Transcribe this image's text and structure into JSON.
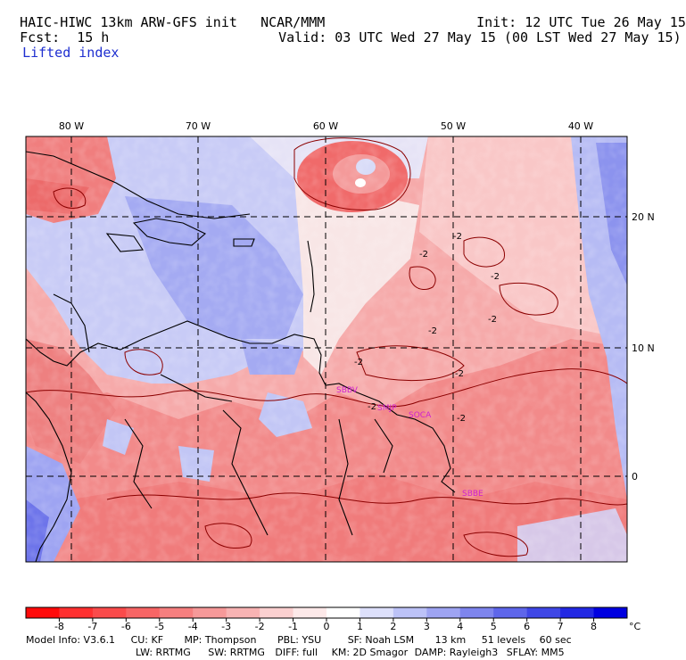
{
  "header": {
    "model_title": "HAIC-HIWC 13km ARW-GFS init",
    "org": "NCAR/MMM",
    "init": "Init: 12 UTC Tue 26 May 15",
    "fcst_label": "Fcst:",
    "fcst_value": "15 h",
    "valid": "Valid: 03 UTC Wed 27 May 15 (00 LST Wed 27 May 15)",
    "field_name": "Lifted index"
  },
  "map": {
    "lon_labels": [
      "80 W",
      "70 W",
      "60 W",
      "50 W",
      "40 W"
    ],
    "lat_labels": [
      "20 N",
      "10 N",
      "0"
    ],
    "stations": [
      "SBBV",
      "SMJP",
      "SOCA",
      "SBBE"
    ],
    "contour_labels": [
      "-2",
      "-2",
      "-2",
      "-2",
      "-2",
      "-2",
      "-2",
      "-2",
      "-2"
    ],
    "station_color": "#d020d0"
  },
  "colorbar": {
    "ticks": [
      "-8",
      "-7",
      "-6",
      "-5",
      "-4",
      "-3",
      "-2",
      "-1",
      "0",
      "1",
      "2",
      "3",
      "4",
      "5",
      "6",
      "7",
      "8"
    ],
    "unit": "°C",
    "colors": [
      "#ff0a0a",
      "#ff3030",
      "#fa4b4b",
      "#f76565",
      "#f67f7f",
      "#f69999",
      "#f8b3b3",
      "#fbd0d0",
      "#fde9e9",
      "#ffffff",
      "#dde0fb",
      "#bcc2f7",
      "#9ea4f2",
      "#7e85ee",
      "#5e66ea",
      "#3f47e6",
      "#2228e3",
      "#0000e0"
    ]
  },
  "footer": {
    "model_info": "Model Info: V3.6.1",
    "cu": "CU: KF",
    "mp": "MP: Thompson",
    "pbl": "PBL: YSU",
    "sf": "SF: Noah LSM",
    "dx": "13 km",
    "levels": "51 levels",
    "dt": "60 sec",
    "lw": "LW: RRTMG",
    "sw": "SW: RRTMG",
    "diff": "DIFF: full",
    "km": "KM: 2D Smagor",
    "damp": "DAMP: Rayleigh3",
    "sflay": "SFLAY: MM5"
  }
}
